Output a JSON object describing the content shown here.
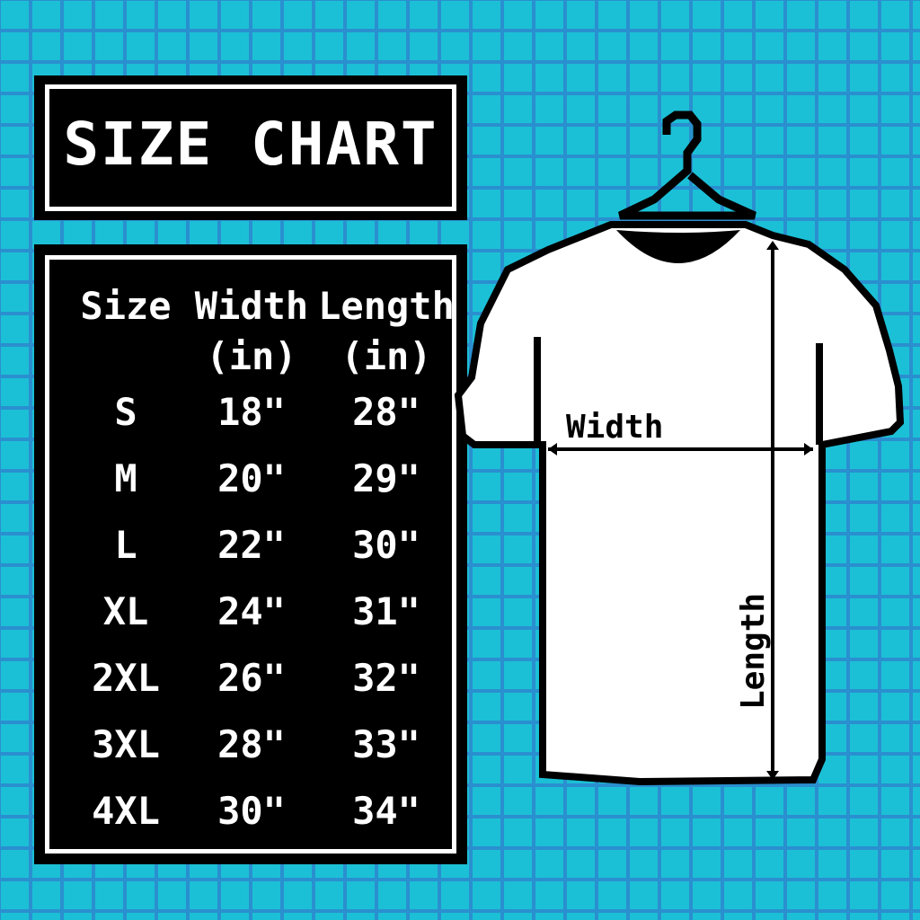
{
  "title": "SIZE CHART",
  "table": {
    "headers": [
      "Size",
      "Width",
      "Length"
    ],
    "units": [
      "",
      "(in)",
      "(in)"
    ],
    "rows": [
      [
        "S",
        "18\"",
        "28\""
      ],
      [
        "M",
        "20\"",
        "29\""
      ],
      [
        "L",
        "22\"",
        "30\""
      ],
      [
        "XL",
        "24\"",
        "31\""
      ],
      [
        "2XL",
        "26\"",
        "32\""
      ],
      [
        "3XL",
        "28\"",
        "33\""
      ],
      [
        "4XL",
        "30\"",
        "34\""
      ]
    ]
  },
  "diagram": {
    "width_label": "Width",
    "length_label": "Length"
  },
  "colors": {
    "background": "#1cc0d6",
    "grid": "#2a8fcf",
    "panel": "#000000",
    "text": "#ffffff"
  }
}
